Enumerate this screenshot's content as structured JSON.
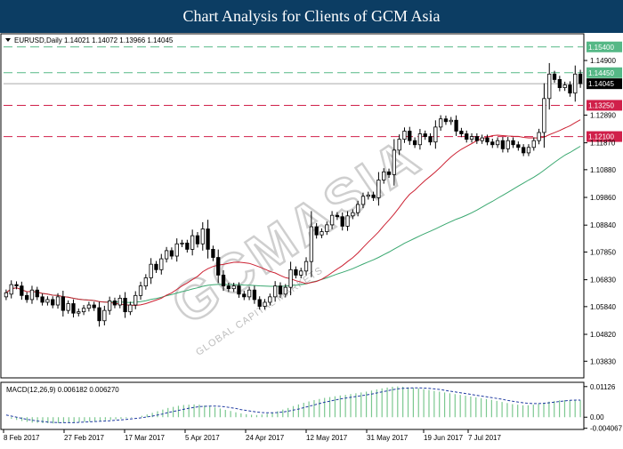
{
  "header": {
    "title": "Chart Analysis for Clients of GCM Asia"
  },
  "watermark": {
    "text": "GCMASIA",
    "subtext": "GLOBAL CAPITAL MARKETS",
    "color": "#cfcfcf"
  },
  "colors": {
    "up_candle": "#ffffff",
    "down_candle": "#000000",
    "candle_outline": "#000000",
    "ma_fast": "#cc2233",
    "ma_slow": "#3aa870",
    "resistance_line": "#55b886",
    "support_line": "#d0204a",
    "macd_hist": "#7cc890",
    "macd_signal": "#1f3aa0",
    "current_price": "#aaaaaa"
  },
  "chart_data": [
    {
      "type": "candlestick",
      "symbol_info": "EURUSD,Daily  1.14021 1.14072 1.13966 1.14045",
      "ylim": [
        1.0325,
        1.1585
      ],
      "y_ticks": [
        "1.14900",
        "1.12890",
        "1.11870",
        "1.10880",
        "1.09860",
        "1.08840",
        "1.07850",
        "1.06830",
        "1.05840",
        "1.04820",
        "1.03830"
      ],
      "x_ticks": [
        "8 Feb 2017",
        "27 Feb 2017",
        "17 Mar 2017",
        "5 Apr 2017",
        "24 Apr 2017",
        "12 May 2017",
        "31 May 2017",
        "19 Jun 2017",
        "7 Jul 2017"
      ],
      "levels": [
        {
          "label": "1.15400",
          "value": 1.154,
          "kind": "resistance"
        },
        {
          "label": "1.14450",
          "value": 1.1445,
          "kind": "resistance"
        },
        {
          "label": "1.13250",
          "value": 1.1325,
          "kind": "support"
        },
        {
          "label": "1.12100",
          "value": 1.121,
          "kind": "support"
        }
      ],
      "current_price": {
        "label": "1.14045",
        "value": 1.14045
      },
      "series": [
        {
          "values": [
            1.0635,
            1.0665,
            1.066,
            1.0625,
            1.061,
            1.0645,
            1.062,
            1.06,
            1.061,
            1.059,
            1.062,
            1.057,
            1.0595,
            1.056,
            1.0565,
            1.0578,
            1.059,
            1.058,
            1.0532,
            1.057,
            1.0605,
            1.059,
            1.0615,
            1.0565,
            1.059,
            1.0625,
            1.066,
            1.069,
            1.074,
            1.072,
            1.076,
            1.079,
            1.077,
            1.0815,
            1.0818,
            1.0795,
            1.0845,
            1.0815,
            1.087,
            1.0795,
            1.0765,
            1.07,
            1.066,
            1.065,
            1.066,
            1.063,
            1.062,
            1.0645,
            1.061,
            1.0585,
            1.06,
            1.062,
            1.066,
            1.063,
            1.0655,
            1.072,
            1.07,
            1.0715,
            1.075,
            1.0878,
            1.0848,
            1.086,
            1.0885,
            1.092,
            1.0915,
            1.088,
            1.0918,
            1.093,
            1.096,
            1.099,
            1.0995,
            1.0985,
            1.105,
            1.108,
            1.107,
            1.116,
            1.12,
            1.123,
            1.1195,
            1.118,
            1.122,
            1.121,
            1.119,
            1.1245,
            1.1275,
            1.1265,
            1.127,
            1.123,
            1.122,
            1.12,
            1.121,
            1.1195,
            1.1205,
            1.119,
            1.118,
            1.1195,
            1.1165,
            1.1195,
            1.118,
            1.117,
            1.115,
            1.117,
            1.1195,
            1.1225,
            1.135,
            1.144,
            1.142,
            1.139,
            1.14,
            1.137,
            1.144,
            1.1405
          ]
        },
        {
          "values": [
            1.062,
            1.063,
            1.0665,
            1.066,
            1.0625,
            1.061,
            1.0645,
            1.062,
            1.06,
            1.061,
            1.059,
            1.062,
            1.057,
            1.0595,
            1.056,
            1.0565,
            1.0578,
            1.059,
            1.058,
            1.0532,
            1.057,
            1.0605,
            1.059,
            1.0615,
            1.0565,
            1.059,
            1.0625,
            1.066,
            1.069,
            1.074,
            1.072,
            1.076,
            1.079,
            1.077,
            1.0815,
            1.0818,
            1.0795,
            1.0845,
            1.0815,
            1.087,
            1.0795,
            1.0765,
            1.07,
            1.066,
            1.065,
            1.066,
            1.063,
            1.062,
            1.0645,
            1.061,
            1.0585,
            1.06,
            1.062,
            1.066,
            1.063,
            1.0655,
            1.072,
            1.07,
            1.0715,
            1.075,
            1.0878,
            1.0848,
            1.086,
            1.0885,
            1.092,
            1.0915,
            1.088,
            1.0918,
            1.093,
            1.096,
            1.099,
            1.0995,
            1.0985,
            1.105,
            1.108,
            1.107,
            1.116,
            1.12,
            1.123,
            1.1195,
            1.118,
            1.122,
            1.121,
            1.119,
            1.1245,
            1.1275,
            1.1265,
            1.127,
            1.123,
            1.122,
            1.12,
            1.121,
            1.1195,
            1.1205,
            1.119,
            1.118,
            1.1195,
            1.1165,
            1.1195,
            1.118,
            1.117,
            1.115,
            1.117,
            1.1195,
            1.1225,
            1.135,
            1.144,
            1.142,
            1.139,
            1.14,
            1.137,
            1.144
          ]
        }
      ]
    },
    {
      "type": "bar",
      "label": "MACD(12,26,9) 0.006182 0.006270",
      "ylim": [
        -0.0045,
        0.0125
      ],
      "y_ticks": [
        "0.01126",
        "0.00",
        "-0.004067"
      ],
      "series": [
        {
          "values": [
            0.0,
            -0.0006,
            -0.001,
            -0.0014,
            -0.0017,
            -0.002,
            -0.0021,
            -0.0022,
            -0.0022,
            -0.0023,
            -0.0022,
            -0.0021,
            -0.002,
            -0.0019,
            -0.0018,
            -0.0017,
            -0.0016,
            -0.0015,
            -0.0013,
            -0.0011,
            -0.001,
            -0.0008,
            -0.0006,
            -0.0004,
            -0.0002,
            0.0,
            0.0005,
            0.001,
            0.0016,
            0.0022,
            0.0028,
            0.0034,
            0.0038,
            0.0042,
            0.0045,
            0.0046,
            0.0047,
            0.0046,
            0.0043,
            0.004,
            0.0036,
            0.0032,
            0.0027,
            0.0023,
            0.0018,
            0.0014,
            0.0011,
            0.0009,
            0.0008,
            0.001,
            0.0013,
            0.0017,
            0.0022,
            0.0028,
            0.0034,
            0.0041,
            0.0047,
            0.0053,
            0.0058,
            0.0063,
            0.0067,
            0.0071,
            0.0074,
            0.0077,
            0.008,
            0.0082,
            0.0085,
            0.0088,
            0.0091,
            0.0094,
            0.0098,
            0.0102,
            0.0106,
            0.0109,
            0.0112,
            0.0113,
            0.0112,
            0.011,
            0.0108,
            0.0106,
            0.0103,
            0.01,
            0.0097,
            0.0094,
            0.0091,
            0.0088,
            0.0085,
            0.0082,
            0.0079,
            0.0076,
            0.0073,
            0.007,
            0.0067,
            0.0064,
            0.006,
            0.0056,
            0.0052,
            0.0048,
            0.0046,
            0.0044,
            0.0044,
            0.0046,
            0.0049,
            0.0053,
            0.0057,
            0.006,
            0.0062,
            0.0063,
            0.0062,
            0.0062,
            0.0062
          ]
        },
        {
          "values": [
            0.0008,
            0.0004,
            0.0,
            -0.0004,
            -0.0008,
            -0.0011,
            -0.0014,
            -0.0016,
            -0.0018,
            -0.0019,
            -0.002,
            -0.002,
            -0.002,
            -0.002,
            -0.0019,
            -0.0018,
            -0.0017,
            -0.0016,
            -0.0015,
            -0.0014,
            -0.0013,
            -0.0011,
            -0.001,
            -0.0008,
            -0.0006,
            -0.0004,
            -0.0002,
            0.0001,
            0.0004,
            0.0008,
            0.0012,
            0.0017,
            0.0021,
            0.0025,
            0.0029,
            0.0033,
            0.0036,
            0.0039,
            0.004,
            0.0041,
            0.0041,
            0.004,
            0.0038,
            0.0035,
            0.0032,
            0.0028,
            0.0025,
            0.0022,
            0.0019,
            0.0017,
            0.0016,
            0.0016,
            0.0017,
            0.0019,
            0.0022,
            0.0026,
            0.003,
            0.0035,
            0.004,
            0.0045,
            0.005,
            0.0055,
            0.0059,
            0.0063,
            0.0067,
            0.007,
            0.0073,
            0.0076,
            0.0079,
            0.0082,
            0.0085,
            0.0089,
            0.0093,
            0.0097,
            0.0101,
            0.0104,
            0.0106,
            0.0107,
            0.0108,
            0.0108,
            0.0107,
            0.0106,
            0.0104,
            0.0102,
            0.0099,
            0.0096,
            0.0093,
            0.009,
            0.0087,
            0.0084,
            0.0081,
            0.0078,
            0.0075,
            0.0072,
            0.0069,
            0.0066,
            0.0062,
            0.0059,
            0.0056,
            0.0053,
            0.0051,
            0.005,
            0.005,
            0.0051,
            0.0053,
            0.0055,
            0.0058,
            0.006,
            0.0062,
            0.0063,
            0.0063
          ]
        }
      ]
    }
  ]
}
